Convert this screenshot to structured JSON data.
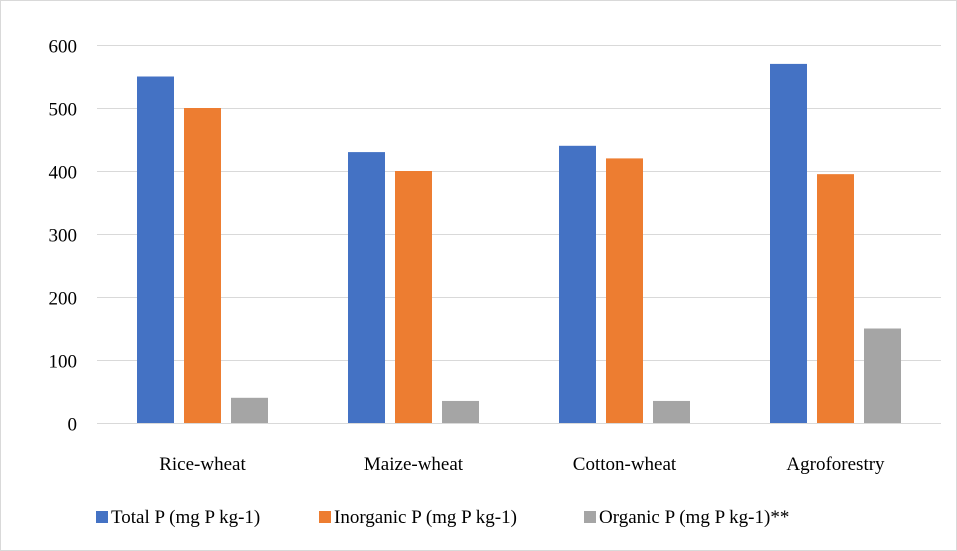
{
  "chart_data": {
    "type": "bar",
    "categories": [
      "Rice-wheat",
      "Maize-wheat",
      "Cotton-wheat",
      "Agroforestry"
    ],
    "series": [
      {
        "name": "Total P (mg P kg-1)",
        "color": "#4472c4",
        "values": [
          550,
          430,
          440,
          570
        ]
      },
      {
        "name": "Inorganic P (mg P kg-1)",
        "color": "#ed7d31",
        "values": [
          500,
          400,
          420,
          395
        ]
      },
      {
        "name": "Organic P (mg P kg-1)**",
        "color": "#a5a5a5",
        "values": [
          40,
          35,
          35,
          150
        ]
      }
    ],
    "ylim": [
      0,
      600
    ],
    "yticks": [
      0,
      100,
      200,
      300,
      400,
      500,
      600
    ],
    "grid": true,
    "legend_position": "bottom",
    "gridline_color": "#d9d9d9"
  }
}
